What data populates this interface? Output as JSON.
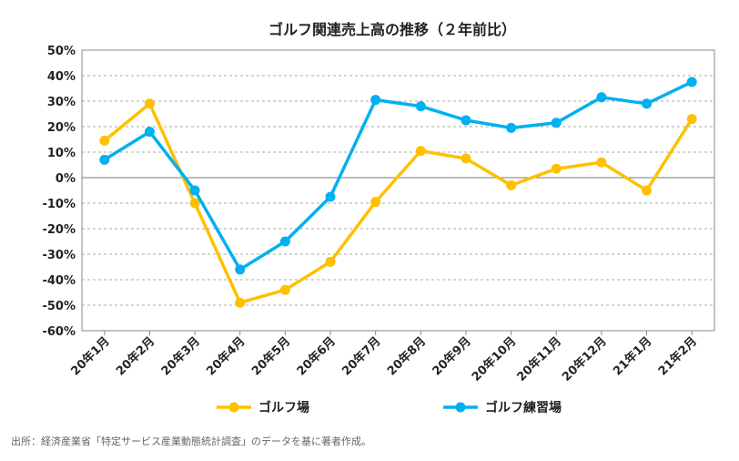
{
  "source_note": "出所：経済産業省「特定サービス産業動態統計調査」のデータを基に著者作成。",
  "chart_data": {
    "type": "line",
    "title": "ゴルフ関連売上高の推移（２年前比）",
    "xlabel": "",
    "ylabel": "",
    "categories": [
      "20年1月",
      "20年2月",
      "20年3月",
      "20年4月",
      "20年5月",
      "20年6月",
      "20年7月",
      "20年8月",
      "20年9月",
      "20年10月",
      "20年11月",
      "20年12月",
      "21年1月",
      "21年2月"
    ],
    "y_ticks": [
      "50%",
      "40%",
      "30%",
      "20%",
      "10%",
      "0%",
      "-10%",
      "-20%",
      "-30%",
      "-40%",
      "-50%",
      "-60%"
    ],
    "ylim": [
      -60,
      50
    ],
    "y_unit": "%",
    "grid": "horizontal dashed",
    "legend_position": "bottom",
    "series": [
      {
        "name": "ゴルフ場",
        "color": "#FFC000",
        "values": [
          14.5,
          29,
          -10,
          -49,
          -44,
          -33,
          -9.5,
          10.5,
          7.5,
          -3,
          3.5,
          6,
          -5,
          23
        ]
      },
      {
        "name": "ゴルフ練習場",
        "color": "#00B0F0",
        "values": [
          7,
          18,
          -5,
          -36,
          -25,
          -7.5,
          30.5,
          28,
          22.5,
          19.5,
          21.5,
          31.5,
          29,
          37.5
        ]
      }
    ]
  }
}
